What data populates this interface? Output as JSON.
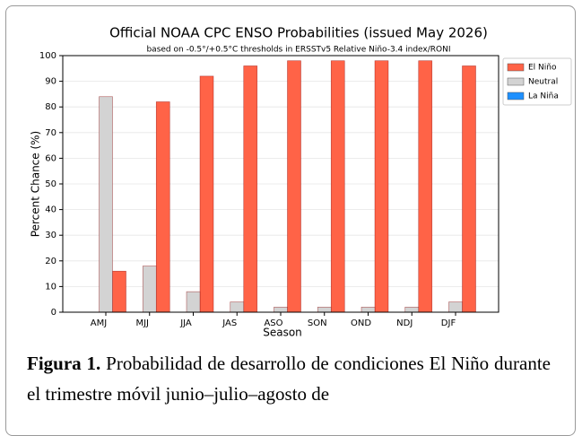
{
  "chart_data": {
    "type": "bar",
    "title": "Official NOAA CPC ENSO Probabilities (issued May 2026)",
    "subtitle": "based on -0.5°/+0.5°C thresholds in ERSSTv5 Relative Niño-3.4 index/RONI",
    "x_label": "Season",
    "y_label": "Percent Chance (%)",
    "categories": [
      "AMJ",
      "MJJ",
      "JJA",
      "JAS",
      "ASO",
      "SON",
      "OND",
      "NDJ",
      "DJF"
    ],
    "series": [
      {
        "name": "El Niño",
        "color": "#ff6347",
        "values": [
          16,
          82,
          92,
          96,
          98,
          98,
          98,
          98,
          96
        ]
      },
      {
        "name": "Neutral",
        "color": "#d3d3d3",
        "values": [
          84,
          18,
          8,
          4,
          2,
          2,
          2,
          2,
          4
        ]
      },
      {
        "name": "La Niña",
        "color": "#1e90ff",
        "values": [
          0,
          0,
          0,
          0,
          0,
          0,
          0,
          0,
          0
        ]
      }
    ],
    "ylim": [
      0,
      100
    ],
    "yticks": [
      0,
      10,
      20,
      30,
      40,
      50,
      60,
      70,
      80,
      90,
      100
    ],
    "grid": true,
    "legend": "upper right"
  },
  "caption": {
    "label": "Figura 1.",
    "text": "Probabilidad de desarrollo de condiciones El Niño durante el trimestre móvil junio–julio–agosto de"
  }
}
